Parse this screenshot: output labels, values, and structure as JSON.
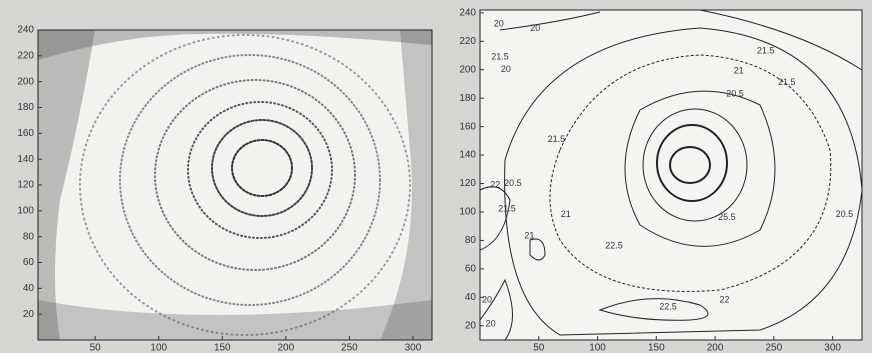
{
  "chart_data": [
    {
      "type": "contour",
      "xlim": [
        5,
        315
      ],
      "ylim": [
        0,
        240
      ],
      "xticks": [
        50,
        100,
        150,
        200,
        250,
        300
      ],
      "yticks": [
        20,
        40,
        60,
        80,
        100,
        120,
        140,
        160,
        180,
        200,
        220,
        240
      ]
    },
    {
      "type": "contour",
      "xlim": [
        0,
        325
      ],
      "ylim": [
        10,
        242
      ],
      "xticks": [
        50,
        100,
        150,
        200,
        250,
        300
      ],
      "yticks": [
        20,
        40,
        60,
        80,
        100,
        120,
        140,
        160,
        180,
        200,
        220,
        240
      ],
      "contour_labels": [
        {
          "x": 16,
          "y": 232,
          "level": 20
        },
        {
          "x": 47,
          "y": 229,
          "level": 20
        },
        {
          "x": 17,
          "y": 209,
          "level": 21.5
        },
        {
          "x": 22,
          "y": 200,
          "level": 20
        },
        {
          "x": 243,
          "y": 213,
          "level": 21.5
        },
        {
          "x": 220,
          "y": 199,
          "level": 21
        },
        {
          "x": 261,
          "y": 191,
          "level": 21.5
        },
        {
          "x": 217,
          "y": 183,
          "level": 20.5
        },
        {
          "x": 65,
          "y": 151,
          "level": 21.5
        },
        {
          "x": 13,
          "y": 119,
          "level": 22
        },
        {
          "x": 28,
          "y": 120,
          "level": 20.5
        },
        {
          "x": 23,
          "y": 102,
          "level": 21.5
        },
        {
          "x": 73,
          "y": 98,
          "level": 21
        },
        {
          "x": 210,
          "y": 96,
          "level": 25.5
        },
        {
          "x": 310,
          "y": 98,
          "level": 20.5
        },
        {
          "x": 42,
          "y": 83,
          "level": 21
        },
        {
          "x": 114,
          "y": 76,
          "level": 22.5
        },
        {
          "x": 160,
          "y": 33,
          "level": 22.5
        },
        {
          "x": 208,
          "y": 38,
          "level": 22
        },
        {
          "x": 6,
          "y": 38,
          "level": 20
        },
        {
          "x": 9,
          "y": 21,
          "level": 20
        }
      ]
    }
  ]
}
